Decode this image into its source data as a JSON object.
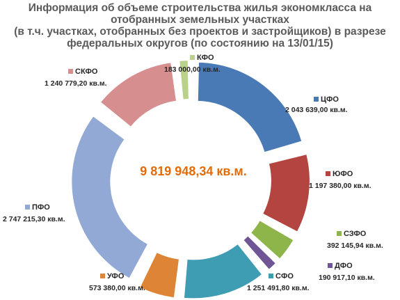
{
  "title": "Информация об объеме строительства жилья экономкласса на\nотобранных земельных участках\n(в т.ч. участках, отобранных без проектов и застройщиков)  в разрезе\nфедеральных округов (по состоянию на 13/01/15)",
  "chart_data": {
    "type": "pie",
    "subtype": "exploded-donut",
    "title": "Информация об объеме строительства жилья экономкласса на отобранных земельных участках (в т.ч. участках, отобранных без проектов и застройщиков)  в разрезе федеральных округов (по состоянию на 13/01/15)",
    "center_label": "9 819 948,34 кв.м.",
    "unit": "кв.м.",
    "legend": "labels-around",
    "slices": [
      {
        "name": "ЦФО",
        "value": 2043639.0,
        "label": "2 043 639,00 кв.м.",
        "color": "#4a7ab5"
      },
      {
        "name": "ЮФО",
        "value": 1197380.0,
        "label": "1 197 380,00 кв.м.",
        "color": "#b3443f"
      },
      {
        "name": "СЗФО",
        "value": 392145.94,
        "label": "392 145,94 кв.м.",
        "color": "#8db54a"
      },
      {
        "name": "ДФО",
        "value": 190917.1,
        "label": "190 917,10 кв.м.",
        "color": "#6f5496"
      },
      {
        "name": "СФО",
        "value": 1251491.8,
        "label": "1 251 491,80 кв.м.",
        "color": "#3f9db3"
      },
      {
        "name": "УФО",
        "value": 573380.0,
        "label": "573 380,00 кв.м.",
        "color": "#dd8436"
      },
      {
        "name": "ПФО",
        "value": 2747215.3,
        "label": "2 747 215,30 кв.м.",
        "color": "#92a9d6"
      },
      {
        "name": "СКФО",
        "value": 1240779.2,
        "label": "1 240 779,20 кв.м.",
        "color": "#d68f8e"
      },
      {
        "name": "КФО",
        "value": 183000.0,
        "label": "183 000,00 кв.м.",
        "color": "#b9d18a"
      }
    ]
  }
}
